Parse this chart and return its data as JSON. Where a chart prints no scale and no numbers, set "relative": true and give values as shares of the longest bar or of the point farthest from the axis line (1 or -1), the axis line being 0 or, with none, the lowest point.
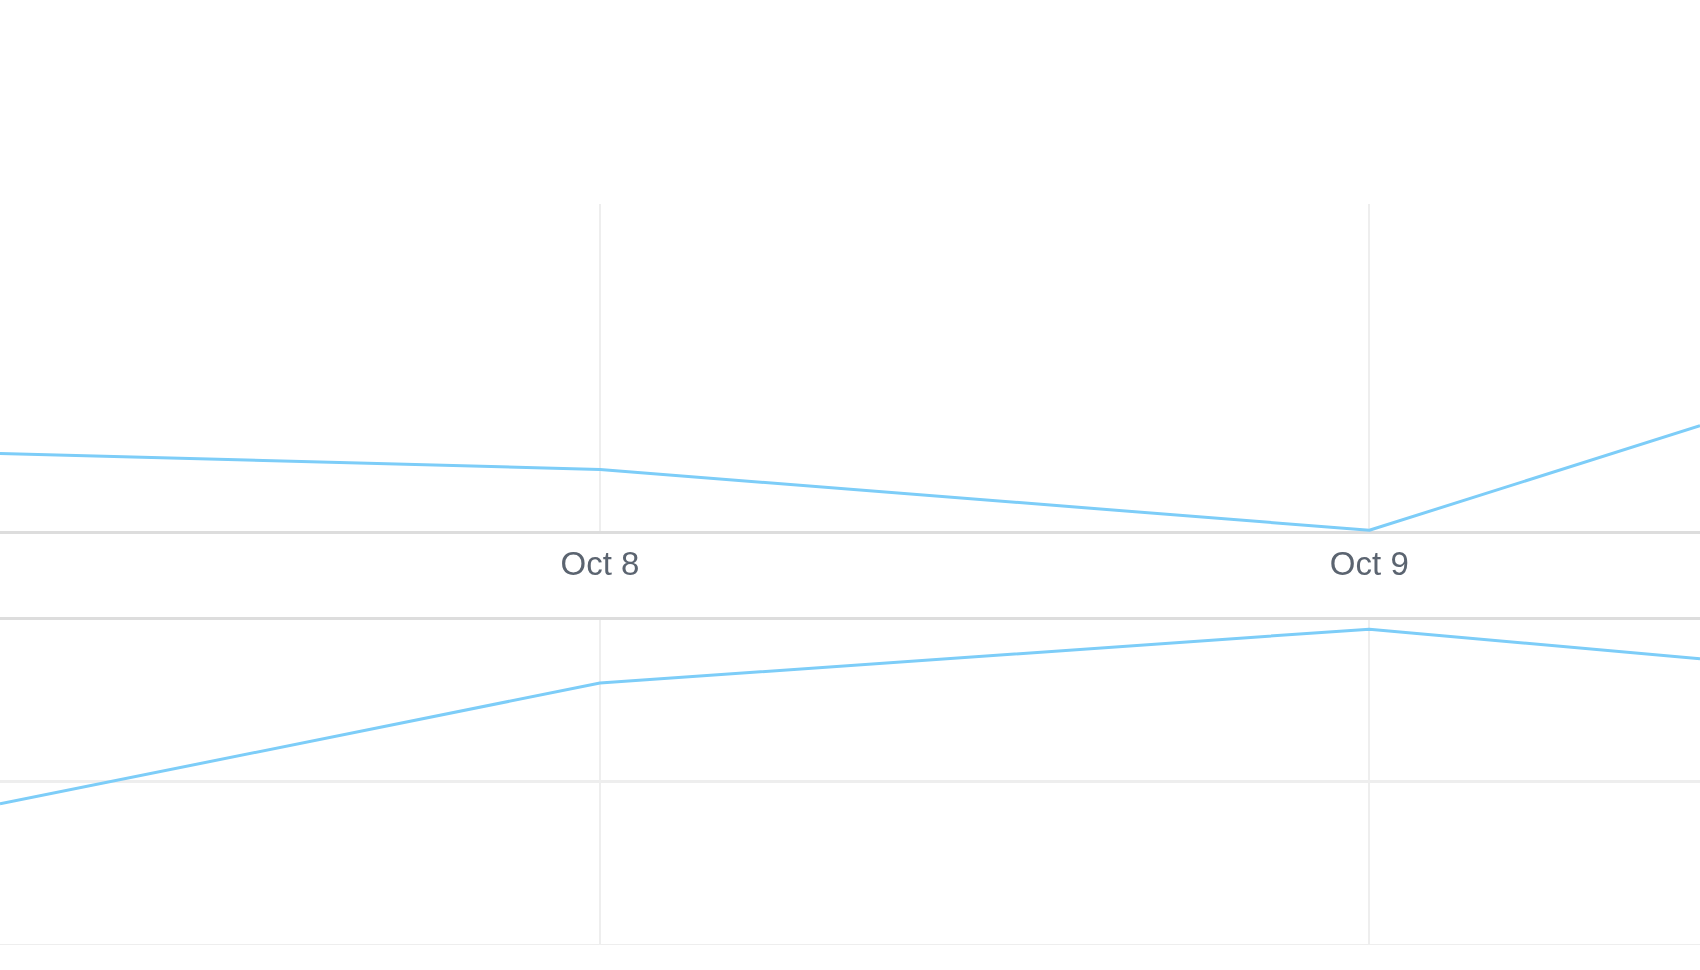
{
  "chart_data": [
    {
      "type": "line",
      "relative": true,
      "x": [
        "--10-07T05:17",
        "--10-08",
        "--10-09",
        "--10-09T10:19"
      ],
      "xlim": [
        "--10-07T05:17",
        "--10-09T10:19"
      ],
      "xticks": [
        {
          "value": "--10-08",
          "label": "Oct 8"
        },
        {
          "value": "--10-09",
          "label": "Oct 9"
        }
      ],
      "series": [
        {
          "color": "#7dcdf8",
          "values": [
            0.74,
            0.59,
            0.02,
            1
          ]
        }
      ],
      "grid": "x",
      "tick_labels": "x",
      "marker": "none"
    },
    {
      "type": "line",
      "relative": true,
      "x": [
        "--10-07T05:17",
        "--10-08",
        "--10-09",
        "--10-09T10:19"
      ],
      "xlim": [
        "--10-07T05:17",
        "--10-09T10:19"
      ],
      "xticks": [
        {
          "value": "--10-08",
          "label": null
        },
        {
          "value": "--10-09",
          "label": null
        }
      ],
      "series": [
        {
          "color": "#7dcdf8",
          "values": [
            -1,
            -0.35,
            -0.06,
            -0.22
          ]
        }
      ],
      "grid": true,
      "tick_labels": false,
      "marker": "none",
      "ref_lines": [
        {
          "axis": "y",
          "value": -0.88,
          "color": "#eeeeee"
        }
      ]
    }
  ]
}
